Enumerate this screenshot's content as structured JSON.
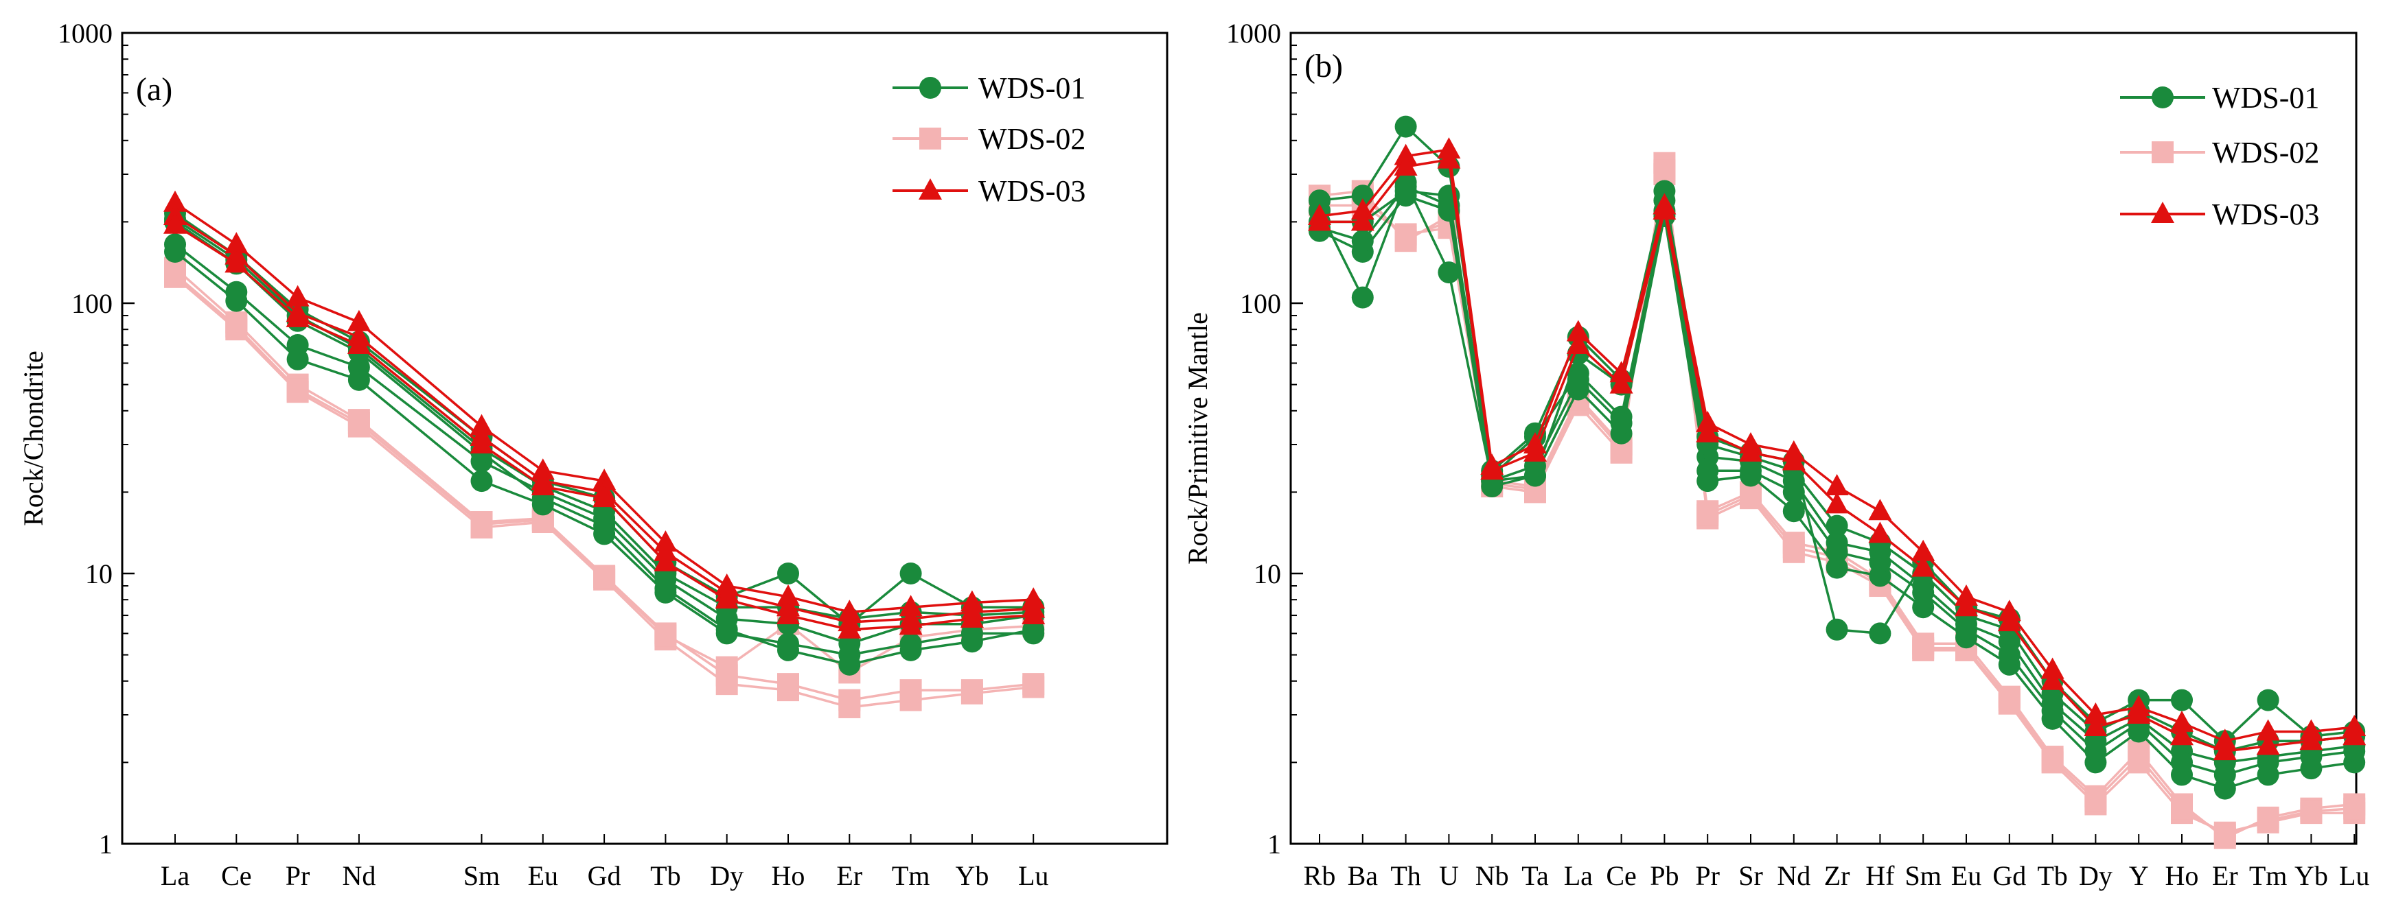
{
  "chart_data": [
    {
      "id": "a",
      "type": "line",
      "panel_label": "(a)",
      "title": "",
      "xlabel": "",
      "ylabel": "Rock/Chondrite",
      "yscale": "log",
      "ylim": [
        1,
        1000
      ],
      "yticks": [
        "1",
        "10",
        "100",
        "1000"
      ],
      "categories": [
        "La",
        "Ce",
        "Pr",
        "Nd",
        "",
        "Sm",
        "Eu",
        "Gd",
        "Tb",
        "Dy",
        "Ho",
        "Er",
        "Tm",
        "Yb",
        "Lu"
      ],
      "legend": [
        {
          "name": "WDS-01",
          "color": "#1a8a3c",
          "marker": "circle"
        },
        {
          "name": "WDS-02",
          "color": "#f4b3b3",
          "marker": "square"
        },
        {
          "name": "WDS-03",
          "color": "#e0100f",
          "marker": "triangle"
        }
      ],
      "series": [
        {
          "name": "WDS-01",
          "color": "#1a8a3c",
          "marker": "circle",
          "values": [
            215,
            150,
            95,
            72,
            null,
            32,
            22,
            19,
            11,
            8.2,
            10,
            6.5,
            10,
            7.5,
            7.5
          ]
        },
        {
          "name": "WDS-01",
          "color": "#1a8a3c",
          "marker": "circle",
          "values": [
            205,
            145,
            90,
            68,
            null,
            29,
            21,
            17,
            10,
            7.5,
            7.5,
            6.8,
            7.2,
            7,
            7.2
          ]
        },
        {
          "name": "WDS-01",
          "color": "#1a8a3c",
          "marker": "circle",
          "values": [
            165,
            110,
            70,
            58,
            null,
            26,
            20,
            16,
            9.5,
            6.8,
            6.5,
            5.5,
            6.5,
            6.5,
            7
          ]
        },
        {
          "name": "WDS-01",
          "color": "#1a8a3c",
          "marker": "circle",
          "values": [
            155,
            102,
            62,
            52,
            null,
            22,
            18,
            14,
            8.5,
            6,
            5.5,
            5,
            5.5,
            6,
            6
          ]
        },
        {
          "name": "WDS-01",
          "color": "#1a8a3c",
          "marker": "circle",
          "values": [
            200,
            140,
            86,
            66,
            null,
            28,
            19,
            15,
            8.8,
            6.2,
            5.2,
            4.6,
            5.2,
            5.6,
            6.2
          ]
        },
        {
          "name": "WDS-02",
          "color": "#f4b3b3",
          "marker": "square",
          "values": [
            135,
            85,
            50,
            37,
            null,
            15.5,
            16,
            9.8,
            6,
            4.2,
            3.9,
            3.4,
            3.7,
            3.7,
            3.9
          ]
        },
        {
          "name": "WDS-02",
          "color": "#f4b3b3",
          "marker": "square",
          "values": [
            125,
            80,
            47,
            35,
            null,
            14.8,
            15.5,
            9.5,
            5.7,
            3.9,
            3.7,
            3.2,
            3.4,
            3.6,
            3.8
          ]
        },
        {
          "name": "WDS-02",
          "color": "#f4b3b3",
          "marker": "square",
          "values": [
            128,
            82,
            48,
            36,
            null,
            15.2,
            15.8,
            9.7,
            5.9,
            4.5,
            6.5,
            4.3,
            5.8,
            6.2,
            6.4
          ]
        },
        {
          "name": "WDS-03",
          "color": "#e0100f",
          "marker": "triangle",
          "values": [
            235,
            165,
            105,
            85,
            null,
            35,
            24,
            22,
            13,
            9,
            8.2,
            7.2,
            7.5,
            7.8,
            8
          ]
        },
        {
          "name": "WDS-03",
          "color": "#e0100f",
          "marker": "triangle",
          "values": [
            210,
            150,
            92,
            75,
            null,
            32,
            22,
            20,
            12,
            8.5,
            7.5,
            6.6,
            6.8,
            7.2,
            7.4
          ]
        },
        {
          "name": "WDS-03",
          "color": "#e0100f",
          "marker": "triangle",
          "values": [
            195,
            140,
            88,
            70,
            null,
            30,
            21,
            19,
            11,
            8,
            7,
            6.2,
            6.4,
            6.8,
            7
          ]
        }
      ]
    },
    {
      "id": "b",
      "type": "line",
      "panel_label": "(b)",
      "title": "",
      "xlabel": "",
      "ylabel": "Rock/Primitive  Mantle",
      "yscale": "log",
      "ylim": [
        1,
        1000
      ],
      "yticks": [
        "1",
        "10",
        "100",
        "1000"
      ],
      "categories": [
        "Rb",
        "Ba",
        "Th",
        "U",
        "Nb",
        "Ta",
        "La",
        "Ce",
        "Pb",
        "Pr",
        "Sr",
        "Nd",
        "Zr",
        "Hf",
        "Sm",
        "Eu",
        "Gd",
        "Tb",
        "Dy",
        "Y",
        "Ho",
        "Er",
        "Tm",
        "Yb",
        "Lu"
      ],
      "legend": [
        {
          "name": "WDS-01",
          "color": "#1a8a3c",
          "marker": "circle"
        },
        {
          "name": "WDS-02",
          "color": "#f4b3b3",
          "marker": "square"
        },
        {
          "name": "WDS-03",
          "color": "#e0100f",
          "marker": "triangle"
        }
      ],
      "series": [
        {
          "name": "WDS-01",
          "color": "#1a8a3c",
          "marker": "circle",
          "values": [
            240,
            250,
            450,
            320,
            24,
            33,
            75,
            52,
            260,
            32,
            28,
            26,
            6.2,
            6,
            11,
            7.5,
            6.8,
            4,
            2.8,
            3.4,
            3.4,
            2.4,
            3.4,
            2.5,
            2.6
          ]
        },
        {
          "name": "WDS-01",
          "color": "#1a8a3c",
          "marker": "circle",
          "values": [
            220,
            105,
            280,
            130,
            22,
            23,
            65,
            50,
            240,
            30,
            27,
            24,
            15,
            13,
            10,
            7,
            6.2,
            3.6,
            2.6,
            3.1,
            2.6,
            2.2,
            2.4,
            2.4,
            2.5
          ]
        },
        {
          "name": "WDS-01",
          "color": "#1a8a3c",
          "marker": "circle",
          "values": [
            200,
            200,
            260,
            250,
            23,
            32,
            55,
            38,
            220,
            27,
            26,
            22,
            13,
            12,
            9,
            6.5,
            5.6,
            3.3,
            2.4,
            2.9,
            2.2,
            2,
            2.1,
            2.2,
            2.3
          ]
        },
        {
          "name": "WDS-01",
          "color": "#1a8a3c",
          "marker": "circle",
          "values": [
            185,
            155,
            250,
            220,
            21,
            23,
            48,
            33,
            210,
            22,
            23,
            17,
            10.5,
            9.8,
            7.5,
            5.8,
            4.6,
            2.9,
            2,
            2.6,
            1.8,
            1.6,
            1.8,
            1.9,
            2
          ]
        },
        {
          "name": "WDS-01",
          "color": "#1a8a3c",
          "marker": "circle",
          "values": [
            190,
            170,
            270,
            230,
            22,
            25,
            52,
            36,
            215,
            24,
            24,
            20,
            12,
            11,
            8.5,
            6.2,
            5,
            3.1,
            2.2,
            2.8,
            2,
            1.8,
            2,
            2.1,
            2.2
          ]
        },
        {
          "name": "WDS-02",
          "color": "#f4b3b3",
          "marker": "square",
          "values": [
            250,
            260,
            170,
            210,
            21,
            20,
            42,
            28,
            330,
            16,
            19,
            12,
            11,
            9,
            5.2,
            5.2,
            3.3,
            2,
            1.4,
            2,
            1.3,
            1.1,
            1.2,
            1.3,
            1.3
          ]
        },
        {
          "name": "WDS-02",
          "color": "#f4b3b3",
          "marker": "square",
          "values": [
            230,
            230,
            180,
            190,
            22,
            21,
            45,
            30,
            300,
            17,
            20,
            13,
            12,
            9.5,
            5.5,
            5.5,
            3.5,
            2.1,
            1.5,
            2.2,
            1.4,
            1.05,
            1.25,
            1.35,
            1.4
          ]
        },
        {
          "name": "WDS-02",
          "color": "#f4b3b3",
          "marker": "square",
          "values": [
            240,
            250,
            175,
            200,
            21.5,
            20.5,
            44,
            29,
            310,
            16.5,
            19.5,
            12.5,
            11.5,
            9.2,
            5.3,
            5.3,
            3.4,
            2.05,
            1.45,
            2.1,
            1.35,
            1.08,
            1.22,
            1.32,
            1.35
          ]
        },
        {
          "name": "WDS-03",
          "color": "#e0100f",
          "marker": "triangle",
          "values": [
            210,
            220,
            350,
            370,
            25,
            30,
            78,
            55,
            230,
            36,
            30,
            28,
            21,
            17,
            12,
            8.2,
            7.2,
            4.4,
            3,
            3.2,
            2.8,
            2.4,
            2.6,
            2.6,
            2.7
          ]
        },
        {
          "name": "WDS-03",
          "color": "#e0100f",
          "marker": "triangle",
          "values": [
            200,
            200,
            320,
            340,
            24,
            28,
            70,
            50,
            220,
            33,
            28,
            26,
            18,
            14,
            10.5,
            7.5,
            6.6,
            4,
            2.7,
            3,
            2.5,
            2.2,
            2.3,
            2.4,
            2.5
          ]
        }
      ]
    }
  ]
}
